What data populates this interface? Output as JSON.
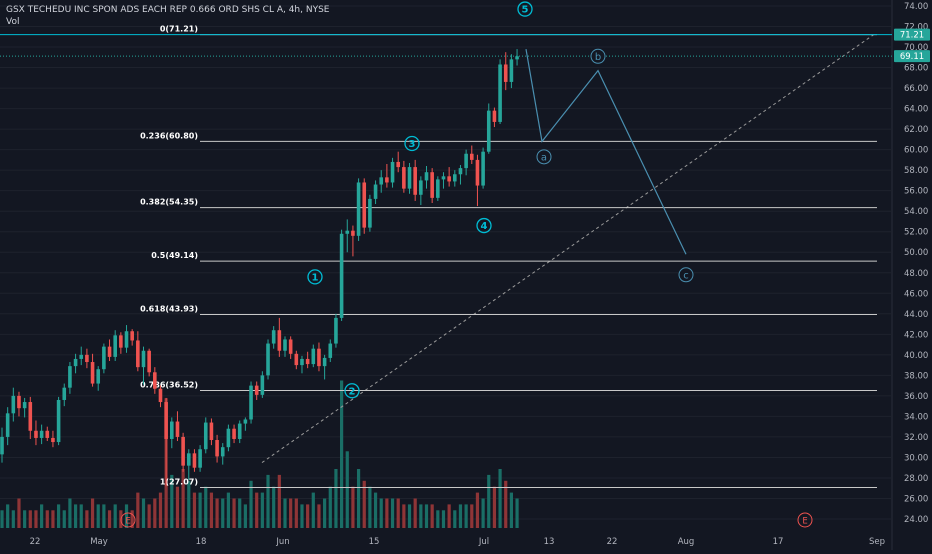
{
  "header": {
    "title": "GSX TECHEDU INC SPON ADS EACH REP 0.666 ORD SHS CL A, 4h, NYSE",
    "volume_label": "Vol"
  },
  "colors": {
    "background": "#131722",
    "up": "#26a69a",
    "down": "#ef5350",
    "up_volume": "#1a6e66",
    "down_volume": "#8f3537",
    "fib_line": "#c8c8c8",
    "wave_label": "#00bcd4",
    "projection": "#4a8fb0",
    "price_tag": "#26a69a",
    "grid": "#1e222d"
  },
  "chart_data": {
    "type": "candlestick",
    "title": "GSX TECHEDU INC SPON ADS EACH REP 0.666 ORD SHS CL A",
    "timeframe": "4h",
    "exchange": "NYSE",
    "ylim": [
      23,
      75
    ],
    "y_ticks": [
      "24.00",
      "26.00",
      "28.00",
      "30.00",
      "32.00",
      "34.00",
      "36.00",
      "38.00",
      "40.00",
      "42.00",
      "44.00",
      "46.00",
      "48.00",
      "50.00",
      "52.00",
      "54.00",
      "56.00",
      "58.00",
      "60.00",
      "62.00",
      "64.00",
      "66.00",
      "68.00",
      "70.00",
      "72.00",
      "74.00"
    ],
    "x_ticks": [
      "22",
      "May",
      "18",
      "Jun",
      "15",
      "Jul",
      "13",
      "22",
      "Aug",
      "17",
      "Sep"
    ],
    "price_tags": [
      {
        "label": "71.21",
        "value": 71.21
      },
      {
        "label": "69.11",
        "value": 69.11
      }
    ],
    "fib_levels": [
      {
        "ratio": "0",
        "label": "0(71.21)",
        "value": 71.21
      },
      {
        "ratio": "0.236",
        "label": "0.236(60.80)",
        "value": 60.8
      },
      {
        "ratio": "0.382",
        "label": "0.382(54.35)",
        "value": 54.35
      },
      {
        "ratio": "0.5",
        "label": "0.5(49.14)",
        "value": 49.14
      },
      {
        "ratio": "0.618",
        "label": "0.618(43.93)",
        "value": 43.93
      },
      {
        "ratio": "0.786",
        "label": "0.786(36.52)",
        "value": 36.52
      },
      {
        "ratio": "1",
        "label": "1(27.07)",
        "value": 27.07
      }
    ],
    "wave_labels": [
      {
        "label": "1",
        "value": 47.6
      },
      {
        "label": "2",
        "value": 36.5
      },
      {
        "label": "3",
        "value": 60.6
      },
      {
        "label": "4",
        "value": 52.6
      },
      {
        "label": "5",
        "value": 73.7
      }
    ],
    "projection_labels": [
      "a",
      "b",
      "c"
    ],
    "projection_path_values": [
      69.8,
      60.8,
      67.7,
      49.8
    ],
    "earnings_markers": [
      "E",
      "E"
    ],
    "candles": [
      [
        30.3,
        32.9,
        29.5,
        32.0
      ],
      [
        32.0,
        34.9,
        31.2,
        34.3
      ],
      [
        34.3,
        36.8,
        33.5,
        36.0
      ],
      [
        36.0,
        36.4,
        34.0,
        34.8
      ],
      [
        34.8,
        35.8,
        33.9,
        35.4
      ],
      [
        35.4,
        35.9,
        31.8,
        32.6
      ],
      [
        32.6,
        33.6,
        31.2,
        31.9
      ],
      [
        31.9,
        33.2,
        31.3,
        32.6
      ],
      [
        32.6,
        33.0,
        31.6,
        31.9
      ],
      [
        31.9,
        32.6,
        31.0,
        31.5
      ],
      [
        31.5,
        35.9,
        31.2,
        35.6
      ],
      [
        35.6,
        37.2,
        35.0,
        36.8
      ],
      [
        36.8,
        39.3,
        36.2,
        38.9
      ],
      [
        38.9,
        40.1,
        38.2,
        39.6
      ],
      [
        39.6,
        40.8,
        39.0,
        40.0
      ],
      [
        40.0,
        40.6,
        38.7,
        39.3
      ],
      [
        39.3,
        40.1,
        36.9,
        37.2
      ],
      [
        37.2,
        38.9,
        36.5,
        38.6
      ],
      [
        38.6,
        41.1,
        38.2,
        40.8
      ],
      [
        40.8,
        41.5,
        39.4,
        39.8
      ],
      [
        39.8,
        42.4,
        39.4,
        41.9
      ],
      [
        41.9,
        42.2,
        40.1,
        40.7
      ],
      [
        40.7,
        42.9,
        40.2,
        42.3
      ],
      [
        42.3,
        42.5,
        40.9,
        41.4
      ],
      [
        41.4,
        42.3,
        38.4,
        38.8
      ],
      [
        38.8,
        40.8,
        37.1,
        40.4
      ],
      [
        40.4,
        40.6,
        37.9,
        38.3
      ],
      [
        38.3,
        38.8,
        36.2,
        36.7
      ],
      [
        36.7,
        37.0,
        34.9,
        35.4
      ],
      [
        35.4,
        35.8,
        27.2,
        31.8
      ],
      [
        31.8,
        33.9,
        30.9,
        33.5
      ],
      [
        33.5,
        34.5,
        31.6,
        32.0
      ],
      [
        32.0,
        32.4,
        28.6,
        29.2
      ],
      [
        29.2,
        30.8,
        27.8,
        30.4
      ],
      [
        30.4,
        30.8,
        28.6,
        29.0
      ],
      [
        29.0,
        31.2,
        28.6,
        30.8
      ],
      [
        30.8,
        33.9,
        30.4,
        33.4
      ],
      [
        33.4,
        33.8,
        31.2,
        31.7
      ],
      [
        31.7,
        32.2,
        29.5,
        30.1
      ],
      [
        30.1,
        31.4,
        29.3,
        31.0
      ],
      [
        31.0,
        33.2,
        30.6,
        32.8
      ],
      [
        32.8,
        33.2,
        31.4,
        31.8
      ],
      [
        31.8,
        33.6,
        31.4,
        33.3
      ],
      [
        33.3,
        33.9,
        32.6,
        33.7
      ],
      [
        33.7,
        37.4,
        33.3,
        37.0
      ],
      [
        37.0,
        37.4,
        35.6,
        36.1
      ],
      [
        36.1,
        38.4,
        35.8,
        38.0
      ],
      [
        38.0,
        41.5,
        37.6,
        41.1
      ],
      [
        41.1,
        42.8,
        40.6,
        42.4
      ],
      [
        42.4,
        43.6,
        39.8,
        40.4
      ],
      [
        40.4,
        41.8,
        39.8,
        41.5
      ],
      [
        41.5,
        41.8,
        39.6,
        40.1
      ],
      [
        40.1,
        40.4,
        38.6,
        39.0
      ],
      [
        39.0,
        39.9,
        38.2,
        39.6
      ],
      [
        39.6,
        40.3,
        38.7,
        39.1
      ],
      [
        39.1,
        41.0,
        38.8,
        40.6
      ],
      [
        40.6,
        41.2,
        38.4,
        38.9
      ],
      [
        38.9,
        40.0,
        37.6,
        39.7
      ],
      [
        39.7,
        41.5,
        39.3,
        41.1
      ],
      [
        41.1,
        44.0,
        40.7,
        43.6
      ],
      [
        43.6,
        52.2,
        43.3,
        51.8
      ],
      [
        51.8,
        53.2,
        50.0,
        52.1
      ],
      [
        52.1,
        52.6,
        49.6,
        51.6
      ],
      [
        51.6,
        57.2,
        51.1,
        56.8
      ],
      [
        56.8,
        57.2,
        51.8,
        52.4
      ],
      [
        52.4,
        55.6,
        52.0,
        55.2
      ],
      [
        55.2,
        57.0,
        54.7,
        56.6
      ],
      [
        56.6,
        58.0,
        55.8,
        57.3
      ],
      [
        57.3,
        58.6,
        56.3,
        56.8
      ],
      [
        56.8,
        59.2,
        56.3,
        58.8
      ],
      [
        58.8,
        59.8,
        57.8,
        58.3
      ],
      [
        58.3,
        58.9,
        55.8,
        56.2
      ],
      [
        56.2,
        58.7,
        55.7,
        58.3
      ],
      [
        58.3,
        59.0,
        55.0,
        55.6
      ],
      [
        55.6,
        57.4,
        54.6,
        57.0
      ],
      [
        57.0,
        58.4,
        56.2,
        57.8
      ],
      [
        57.8,
        58.2,
        54.8,
        55.3
      ],
      [
        55.3,
        57.4,
        55.0,
        57.1
      ],
      [
        57.1,
        57.8,
        56.2,
        57.4
      ],
      [
        57.4,
        58.3,
        56.4,
        56.9
      ],
      [
        56.9,
        58.0,
        56.4,
        57.6
      ],
      [
        57.6,
        58.5,
        56.6,
        58.2
      ],
      [
        58.2,
        60.0,
        57.5,
        59.6
      ],
      [
        59.6,
        60.4,
        58.6,
        59.0
      ],
      [
        59.0,
        59.5,
        54.5,
        56.5
      ],
      [
        56.5,
        60.2,
        56.2,
        59.8
      ],
      [
        59.8,
        64.5,
        59.6,
        63.8
      ],
      [
        63.8,
        64.1,
        62.2,
        62.7
      ],
      [
        62.7,
        68.8,
        62.5,
        68.3
      ],
      [
        68.3,
        69.5,
        65.8,
        66.6
      ],
      [
        66.6,
        69.3,
        66.0,
        68.8
      ],
      [
        68.8,
        69.8,
        68.2,
        69.1
      ]
    ],
    "volumes": [
      3,
      4,
      3,
      5,
      3,
      3,
      3,
      4,
      3,
      3,
      4,
      3,
      5,
      4,
      4,
      3,
      5,
      4,
      4,
      3,
      4,
      3,
      4,
      3,
      6,
      5,
      4,
      5,
      6,
      22,
      9,
      7,
      10,
      8,
      6,
      6,
      7,
      6,
      5,
      5,
      6,
      5,
      5,
      4,
      8,
      6,
      6,
      9,
      7,
      9,
      5,
      5,
      5,
      4,
      4,
      6,
      4,
      5,
      7,
      10,
      25,
      13,
      7,
      10,
      8,
      7,
      6,
      5,
      5,
      5,
      5,
      4,
      4,
      5,
      4,
      4,
      4,
      3,
      3,
      4,
      3,
      4,
      4,
      4,
      6,
      5,
      9,
      7,
      10,
      8,
      6,
      5
    ]
  }
}
